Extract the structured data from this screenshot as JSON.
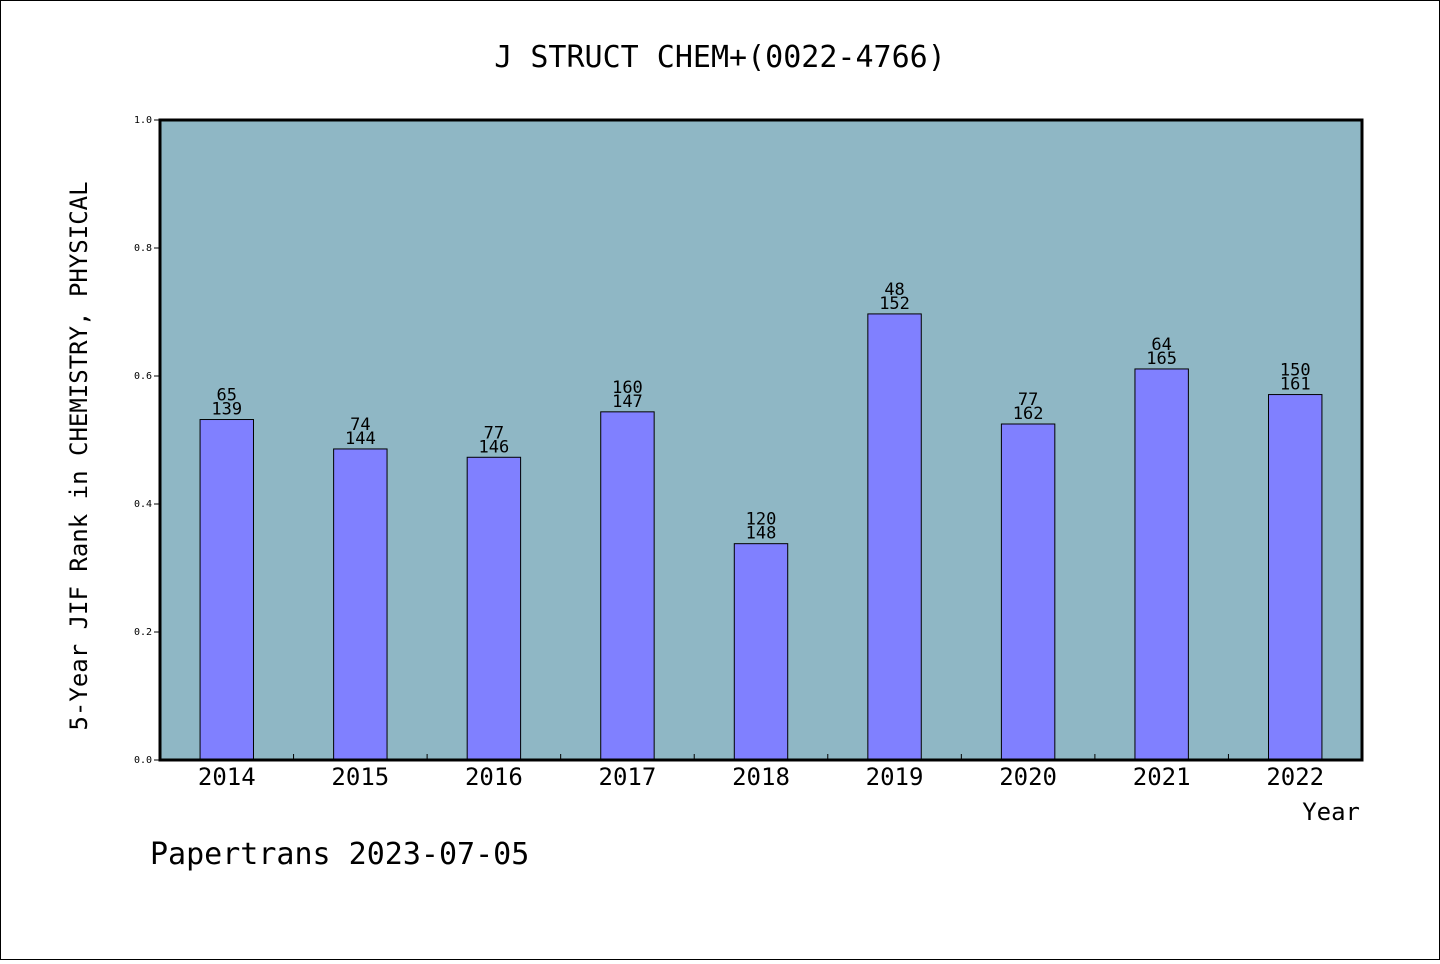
{
  "chart_data": {
    "type": "bar",
    "title": "J STRUCT CHEM+(0022-4766)",
    "xlabel": "Year",
    "ylabel": "5-Year JIF Rank in CHEMISTRY, PHYSICAL",
    "ylim": [
      0.0,
      1.0
    ],
    "yticks": [
      "0.0",
      "0.2",
      "0.4",
      "0.6",
      "0.8",
      "1.0"
    ],
    "grid": false,
    "background_color": "#8fb7c5",
    "bar_color": "#8080ff",
    "categories": [
      "2014",
      "2015",
      "2016",
      "2017",
      "2018",
      "2019",
      "2020",
      "2021",
      "2022"
    ],
    "values": [
      0.532,
      0.486,
      0.473,
      0.544,
      0.338,
      0.697,
      0.525,
      0.611,
      0.571
    ],
    "rank_labels": [
      "65",
      "74",
      "77",
      "160",
      "120",
      "48",
      "77",
      "64",
      "150"
    ],
    "total_labels": [
      "139",
      "144",
      "146",
      "147",
      "148",
      "152",
      "162",
      "165",
      "161"
    ]
  },
  "footer": "Papertrans 2023-07-05"
}
